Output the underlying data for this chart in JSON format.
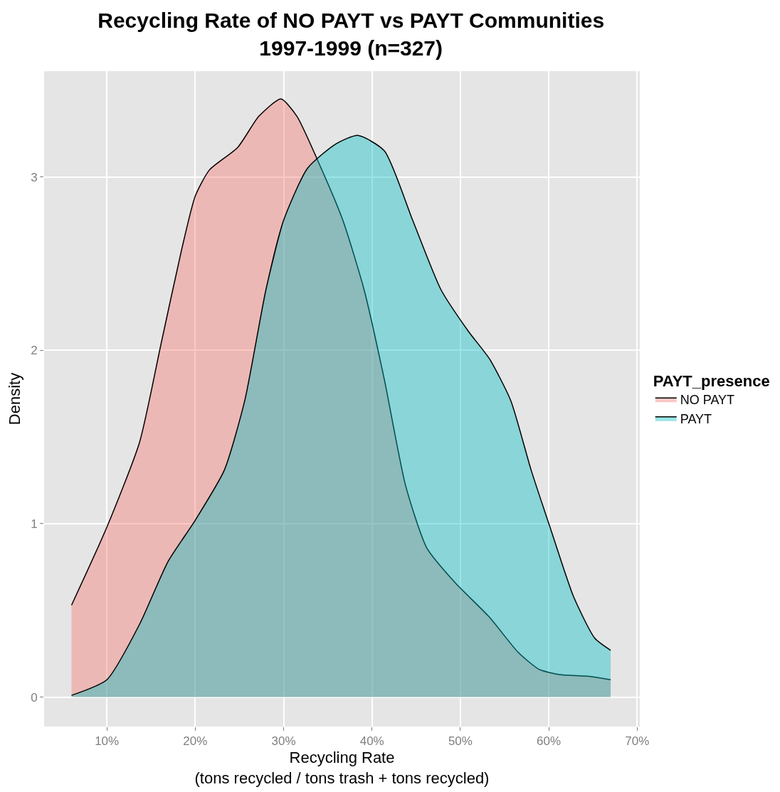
{
  "chart_data": {
    "type": "area",
    "title": "Recycling Rate of NO PAYT vs PAYT Communities\n1997-1999 (n=327)",
    "xlabel": "Recycling Rate\n(tons recycled / tons trash + tons recycled)",
    "ylabel": "Density",
    "legend_title": "PAYT_presence",
    "legend": "right",
    "grid": true,
    "xlim": [
      2.9,
      70.3
    ],
    "ylim": [
      -0.17,
      3.61
    ],
    "xticks": [
      {
        "value": 10,
        "label": "10%"
      },
      {
        "value": 20,
        "label": "20%"
      },
      {
        "value": 30,
        "label": "30%"
      },
      {
        "value": 40,
        "label": "40%"
      },
      {
        "value": 50,
        "label": "50%"
      },
      {
        "value": 60,
        "label": "60%"
      },
      {
        "value": 70,
        "label": "70%"
      }
    ],
    "yticks": [
      0,
      1,
      2,
      3
    ],
    "series": [
      {
        "name": "NO PAYT",
        "color": "#f8766d",
        "x": [
          6,
          10,
          13.7,
          16.1,
          18.5,
          20,
          21.6,
          24.8,
          27.2,
          29.7,
          31.5,
          33.9,
          36.7,
          39.1,
          41.4,
          43.8,
          46.2,
          49.4,
          53.3,
          56.5,
          58.9,
          61.2,
          64.4,
          67
        ],
        "values": [
          0.53,
          0.98,
          1.47,
          2.03,
          2.59,
          2.89,
          3.04,
          3.17,
          3.35,
          3.45,
          3.35,
          3.09,
          2.75,
          2.35,
          1.83,
          1.22,
          0.86,
          0.66,
          0.46,
          0.26,
          0.16,
          0.13,
          0.12,
          0.1
        ]
      },
      {
        "name": "PAYT",
        "color": "#00bfc4",
        "x": [
          6,
          10,
          13.7,
          16.9,
          20,
          23.3,
          25.6,
          28,
          30,
          32.7,
          35.9,
          38.4,
          41.4,
          44.6,
          47.8,
          50.9,
          53.3,
          55.7,
          58,
          60.4,
          62.8,
          65.2,
          67
        ],
        "values": [
          0.01,
          0.1,
          0.42,
          0.78,
          1.02,
          1.31,
          1.71,
          2.35,
          2.75,
          3.05,
          3.19,
          3.24,
          3.15,
          2.75,
          2.35,
          2.11,
          1.95,
          1.71,
          1.31,
          0.94,
          0.58,
          0.34,
          0.27
        ]
      }
    ]
  }
}
